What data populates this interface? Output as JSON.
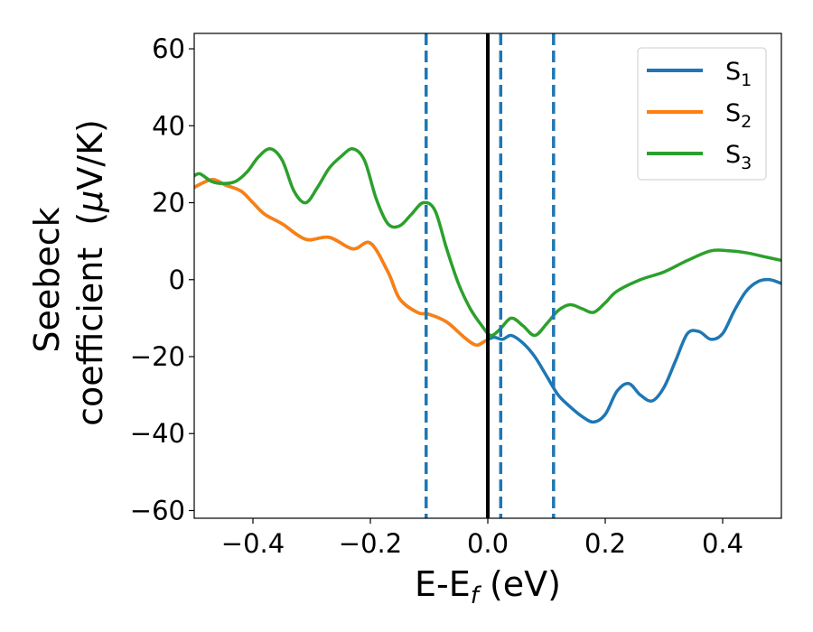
{
  "chart_data": {
    "type": "line",
    "xlabel": "E-E",
    "xlabel_subscript": "f",
    "xlabel_unit": "(eV)",
    "ylabel_line1": "Seebeck",
    "ylabel_line2_prefix": "coefficient  (",
    "ylabel_mu": "μ",
    "ylabel_line2_suffix": "V/K)",
    "xlim": [
      -0.5,
      0.5
    ],
    "ylim": [
      -62,
      64
    ],
    "x_ticks": [
      -0.4,
      -0.2,
      0.0,
      0.2,
      0.4
    ],
    "x_tick_labels": [
      "−0.4",
      "−0.2",
      "0.0",
      "0.2",
      "0.4"
    ],
    "y_ticks": [
      -60,
      -40,
      -20,
      0,
      20,
      40,
      60
    ],
    "y_tick_labels": [
      "−60",
      "−40",
      "−20",
      "0",
      "20",
      "40",
      "60"
    ],
    "grid": false,
    "legend_position": "top-right",
    "series": [
      {
        "name": "S",
        "subscript": "1",
        "color": "#1f77b4",
        "x": [
          -0.5,
          -0.47,
          -0.445,
          -0.42,
          -0.4,
          -0.38,
          -0.35,
          -0.31,
          -0.27,
          -0.23,
          -0.2,
          -0.17,
          -0.15,
          -0.12,
          -0.1,
          -0.07,
          -0.04,
          -0.02,
          -0.005,
          0.01,
          0.025,
          0.04,
          0.06,
          0.08,
          0.1,
          0.12,
          0.14,
          0.16,
          0.18,
          0.2,
          0.22,
          0.24,
          0.26,
          0.28,
          0.3,
          0.32,
          0.34,
          0.36,
          0.38,
          0.4,
          0.42,
          0.44,
          0.46,
          0.48,
          0.5
        ],
        "y": [
          24,
          26,
          24.5,
          23,
          20,
          17,
          14.5,
          10.5,
          11,
          8,
          9.5,
          2,
          -5,
          -8.5,
          -9,
          -11,
          -15,
          -17,
          -16,
          -15,
          -15.5,
          -14.5,
          -16.5,
          -20,
          -25,
          -30,
          -33,
          -35.5,
          -37,
          -35,
          -29,
          -27,
          -30,
          -31.5,
          -28,
          -21,
          -14,
          -13.5,
          -15.5,
          -14,
          -8,
          -3,
          -0.5,
          0,
          -1
        ]
      },
      {
        "name": "S",
        "subscript": "2",
        "color": "#ff7f0e",
        "x": [
          -0.5,
          -0.47,
          -0.445,
          -0.42,
          -0.4,
          -0.38,
          -0.35,
          -0.31,
          -0.27,
          -0.23,
          -0.2,
          -0.17,
          -0.15,
          -0.12,
          -0.1,
          -0.07,
          -0.04,
          -0.02,
          -0.005
        ],
        "y": [
          24,
          26,
          24.5,
          23,
          20,
          17,
          14.5,
          10.5,
          11,
          8,
          9.5,
          2,
          -5,
          -8.5,
          -9,
          -11,
          -15,
          -17,
          -16
        ]
      },
      {
        "name": "S",
        "subscript": "3",
        "color": "#2ca02c",
        "x": [
          -0.5,
          -0.49,
          -0.47,
          -0.45,
          -0.43,
          -0.41,
          -0.39,
          -0.37,
          -0.35,
          -0.33,
          -0.31,
          -0.29,
          -0.27,
          -0.25,
          -0.23,
          -0.21,
          -0.19,
          -0.17,
          -0.15,
          -0.13,
          -0.11,
          -0.09,
          -0.07,
          -0.05,
          -0.03,
          -0.01,
          0.005,
          0.02,
          0.04,
          0.06,
          0.08,
          0.1,
          0.12,
          0.14,
          0.16,
          0.18,
          0.2,
          0.22,
          0.26,
          0.3,
          0.34,
          0.38,
          0.41,
          0.44,
          0.47,
          0.5
        ],
        "y": [
          27,
          27.5,
          25.5,
          25,
          25.5,
          28,
          32,
          34,
          31,
          23,
          20,
          24,
          29,
          32,
          34,
          31,
          21,
          14.5,
          14,
          17,
          20,
          18,
          8,
          -1,
          -7.5,
          -12,
          -14.5,
          -13,
          -10,
          -12,
          -14.5,
          -11.5,
          -8,
          -6.5,
          -7.5,
          -8.5,
          -6,
          -3,
          0,
          2,
          5,
          7.5,
          7.5,
          7,
          6,
          5
        ]
      }
    ],
    "vlines": [
      {
        "x": -0.105,
        "style": "dashed",
        "color": "#1f77b4"
      },
      {
        "x": 0.0,
        "style": "solid",
        "color": "#000000"
      },
      {
        "x": 0.022,
        "style": "dashed",
        "color": "#1f77b4"
      },
      {
        "x": 0.112,
        "style": "dashed",
        "color": "#1f77b4"
      }
    ]
  }
}
